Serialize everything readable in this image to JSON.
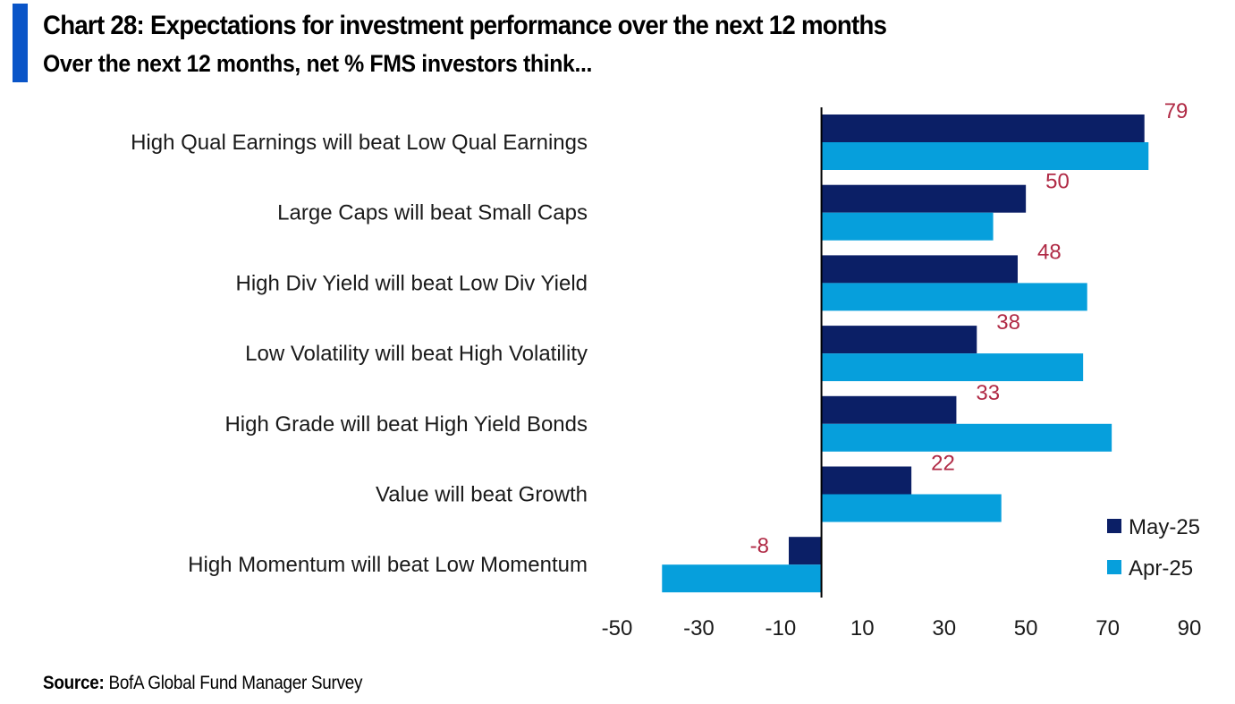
{
  "header": {
    "title": "Chart 28: Expectations for investment performance over the next 12 months",
    "subtitle": "Over the next 12 months, net % FMS investors think..."
  },
  "footer": {
    "source_label": "Source:",
    "source_text": "BofA Global Fund Manager Survey"
  },
  "colors": {
    "accent": "#0a55c8",
    "may": "#0b1f66",
    "apr": "#069fdc",
    "data_label": "#b02a45"
  },
  "chart_data": {
    "type": "bar",
    "orientation": "horizontal",
    "title": "Chart 28: Expectations for investment performance over the next 12 months",
    "subtitle": "Over the next 12 months, net % FMS investors think...",
    "categories": [
      "High Qual Earnings will beat Low Qual Earnings",
      "Large Caps will beat Small Caps",
      "High Div Yield will beat Low Div Yield",
      "Low Volatility will beat High Volatility",
      "High Grade will beat High Yield Bonds",
      "Value will beat Growth",
      "High Momentum will beat Low Momentum"
    ],
    "series": [
      {
        "name": "May-25",
        "color": "#0b1f66",
        "values": [
          79,
          50,
          48,
          38,
          33,
          22,
          -8
        ]
      },
      {
        "name": "Apr-25",
        "color": "#069fdc",
        "values": [
          80,
          42,
          65,
          64,
          71,
          44,
          -39
        ]
      }
    ],
    "data_labels": [
      "79",
      "50",
      "48",
      "38",
      "33",
      "22",
      "-8"
    ],
    "xlim": [
      -50,
      90
    ],
    "xticks": [
      "-50",
      "-30",
      "-10",
      "10",
      "30",
      "50",
      "70",
      "90"
    ],
    "grid": false,
    "legend_position": "bottom-right"
  }
}
